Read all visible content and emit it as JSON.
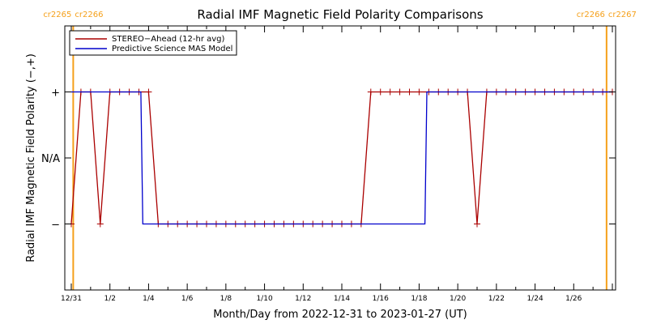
{
  "chart_data": {
    "type": "line",
    "title": "Radial IMF Magnetic Field Polarity Comparisons",
    "xlabel": "Month/Day from 2022-12-31 to 2023-01-27 (UT)",
    "ylabel": "Radial IMF Magnetic Field Polarity (−,+)",
    "xlim": [
      0,
      28
    ],
    "x_ticks": [
      {
        "x": 0,
        "label": "12/31"
      },
      {
        "x": 2,
        "label": "1/2"
      },
      {
        "x": 4,
        "label": "1/4"
      },
      {
        "x": 6,
        "label": "1/6"
      },
      {
        "x": 8,
        "label": "1/8"
      },
      {
        "x": 10,
        "label": "1/10"
      },
      {
        "x": 12,
        "label": "1/12"
      },
      {
        "x": 14,
        "label": "1/14"
      },
      {
        "x": 16,
        "label": "1/16"
      },
      {
        "x": 18,
        "label": "1/18"
      },
      {
        "x": 20,
        "label": "1/20"
      },
      {
        "x": 22,
        "label": "1/22"
      },
      {
        "x": 24,
        "label": "1/24"
      },
      {
        "x": 26,
        "label": "1/26"
      }
    ],
    "ylim": [
      -2,
      2
    ],
    "y_ticks": [
      {
        "y": 1,
        "label": "+"
      },
      {
        "y": 0,
        "label": "N/A"
      },
      {
        "y": -1,
        "label": "−"
      }
    ],
    "legend": {
      "position": "top-left"
    },
    "series": [
      {
        "name": "STEREO−Ahead (12-hr avg)",
        "color": "#aa0000",
        "marker": "+",
        "points": [
          [
            0.0,
            -1
          ],
          [
            0.5,
            1
          ],
          [
            1.0,
            1
          ],
          [
            1.5,
            -1
          ],
          [
            2.0,
            1
          ],
          [
            2.5,
            1
          ],
          [
            3.0,
            1
          ],
          [
            3.5,
            1
          ],
          [
            4.0,
            1
          ],
          [
            4.5,
            -1
          ],
          [
            5.0,
            -1
          ],
          [
            5.5,
            -1
          ],
          [
            6.0,
            -1
          ],
          [
            6.5,
            -1
          ],
          [
            7.0,
            -1
          ],
          [
            7.5,
            -1
          ],
          [
            8.0,
            -1
          ],
          [
            8.5,
            -1
          ],
          [
            9.0,
            -1
          ],
          [
            9.5,
            -1
          ],
          [
            10.0,
            -1
          ],
          [
            10.5,
            -1
          ],
          [
            11.0,
            -1
          ],
          [
            11.5,
            -1
          ],
          [
            12.0,
            -1
          ],
          [
            12.5,
            -1
          ],
          [
            13.0,
            -1
          ],
          [
            13.5,
            -1
          ],
          [
            14.0,
            -1
          ],
          [
            14.5,
            -1
          ],
          [
            15.0,
            -1
          ],
          [
            15.5,
            1
          ],
          [
            16.0,
            1
          ],
          [
            16.5,
            1
          ],
          [
            17.0,
            1
          ],
          [
            17.5,
            1
          ],
          [
            18.0,
            1
          ],
          [
            18.5,
            1
          ],
          [
            19.0,
            1
          ],
          [
            19.5,
            1
          ],
          [
            20.0,
            1
          ],
          [
            20.5,
            1
          ],
          [
            21.0,
            -1
          ],
          [
            21.5,
            1
          ],
          [
            22.0,
            1
          ],
          [
            22.5,
            1
          ],
          [
            23.0,
            1
          ],
          [
            23.5,
            1
          ],
          [
            24.0,
            1
          ],
          [
            24.5,
            1
          ],
          [
            25.0,
            1
          ],
          [
            25.5,
            1
          ],
          [
            26.0,
            1
          ],
          [
            26.5,
            1
          ],
          [
            27.0,
            1
          ],
          [
            27.5,
            1
          ],
          [
            28.0,
            1
          ]
        ]
      },
      {
        "name": "Predictive Science MAS Model",
        "color": "#0000cc",
        "marker": "none",
        "points": [
          [
            0.0,
            1
          ],
          [
            3.6,
            1
          ],
          [
            3.7,
            -1
          ],
          [
            18.3,
            -1
          ],
          [
            18.4,
            1
          ],
          [
            28.0,
            1
          ]
        ]
      }
    ],
    "carrington_markers": [
      {
        "x": 0.1,
        "label_left": "cr2265",
        "label_right": "cr2266"
      },
      {
        "x": 27.7,
        "label_left": "cr2266",
        "label_right": "cr2267"
      }
    ],
    "marker_color": "#f5a01a"
  }
}
